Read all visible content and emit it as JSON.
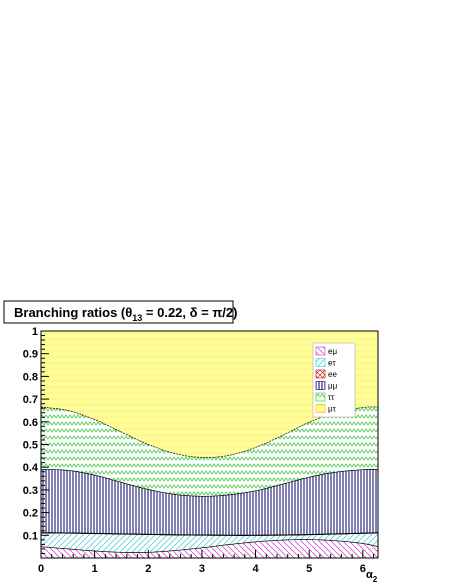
{
  "chart_data": {
    "type": "area",
    "title": "Branching ratios (θ₁₃ = 0.22, δ = π/2)",
    "title_parts": {
      "a": "Branching ratios (θ",
      "sub": "13",
      "b": " = 0.22, δ = π/2)"
    },
    "xlabel": "α₂",
    "xlabel_parts": {
      "main": "α",
      "sub": "2"
    },
    "ylabel": "",
    "xlim": [
      0,
      6.283
    ],
    "ylim": [
      0,
      1
    ],
    "xticks": [
      "0",
      "1",
      "2",
      "3",
      "4",
      "5",
      "6"
    ],
    "xtick_values": [
      0,
      1,
      2,
      3,
      4,
      5,
      6
    ],
    "yticks": [
      "0.1",
      "0.2",
      "0.3",
      "0.4",
      "0.5",
      "0.6",
      "0.7",
      "0.8",
      "0.9",
      "1"
    ],
    "ytick_values": [
      0.1,
      0.2,
      0.3,
      0.4,
      0.5,
      0.6,
      0.7,
      0.8,
      0.9,
      1.0
    ],
    "stacking": "cumulative",
    "x": [
      0,
      0.5,
      1,
      1.5,
      2,
      2.5,
      3,
      3.5,
      4,
      4.5,
      5,
      5.5,
      6,
      6.283
    ],
    "series": [
      {
        "name": "eμ",
        "color": "#cc33cc",
        "fill": "hatch-diag",
        "cumulative": [
          0.05,
          0.04,
          0.031,
          0.025,
          0.025,
          0.033,
          0.045,
          0.059,
          0.071,
          0.079,
          0.081,
          0.076,
          0.064,
          0.05
        ]
      },
      {
        "name": "eτ",
        "color": "#33cccc",
        "fill": "hatch-diag2",
        "cumulative": [
          0.11,
          0.109,
          0.107,
          0.105,
          0.103,
          0.101,
          0.1,
          0.099,
          0.099,
          0.1,
          0.102,
          0.105,
          0.108,
          0.11
        ]
      },
      {
        "name": "ee",
        "color": "#cc0000",
        "fill": "crosshatch",
        "cumulative": [
          0.112,
          0.111,
          0.109,
          0.107,
          0.105,
          0.103,
          0.102,
          0.101,
          0.101,
          0.102,
          0.104,
          0.107,
          0.11,
          0.112
        ]
      },
      {
        "name": "μμ",
        "color": "#000066",
        "fill": "vertical-lines",
        "cumulative": [
          0.39,
          0.386,
          0.365,
          0.333,
          0.302,
          0.28,
          0.272,
          0.278,
          0.296,
          0.325,
          0.356,
          0.378,
          0.389,
          0.39
        ]
      },
      {
        "name": "ττ",
        "color": "#33cc33",
        "fill": "zigzag",
        "cumulative": [
          0.665,
          0.65,
          0.61,
          0.555,
          0.5,
          0.46,
          0.443,
          0.452,
          0.487,
          0.54,
          0.598,
          0.642,
          0.663,
          0.665
        ]
      },
      {
        "name": "μτ",
        "color": "#ffaa00",
        "fill": "solid-yellow",
        "cumulative": [
          1,
          1,
          1,
          1,
          1,
          1,
          1,
          1,
          1,
          1,
          1,
          1,
          1,
          1
        ]
      }
    ],
    "legend_position": "top-right",
    "colors": {
      "mu_tau_fill": "#ffff99",
      "tau_tau_pattern": "#33cc33",
      "mu_mu_pattern": "#000066",
      "e_mu_pattern": "#cc33cc",
      "e_tau_pattern": "#33cccc",
      "ee_pattern": "#cc0000"
    }
  }
}
